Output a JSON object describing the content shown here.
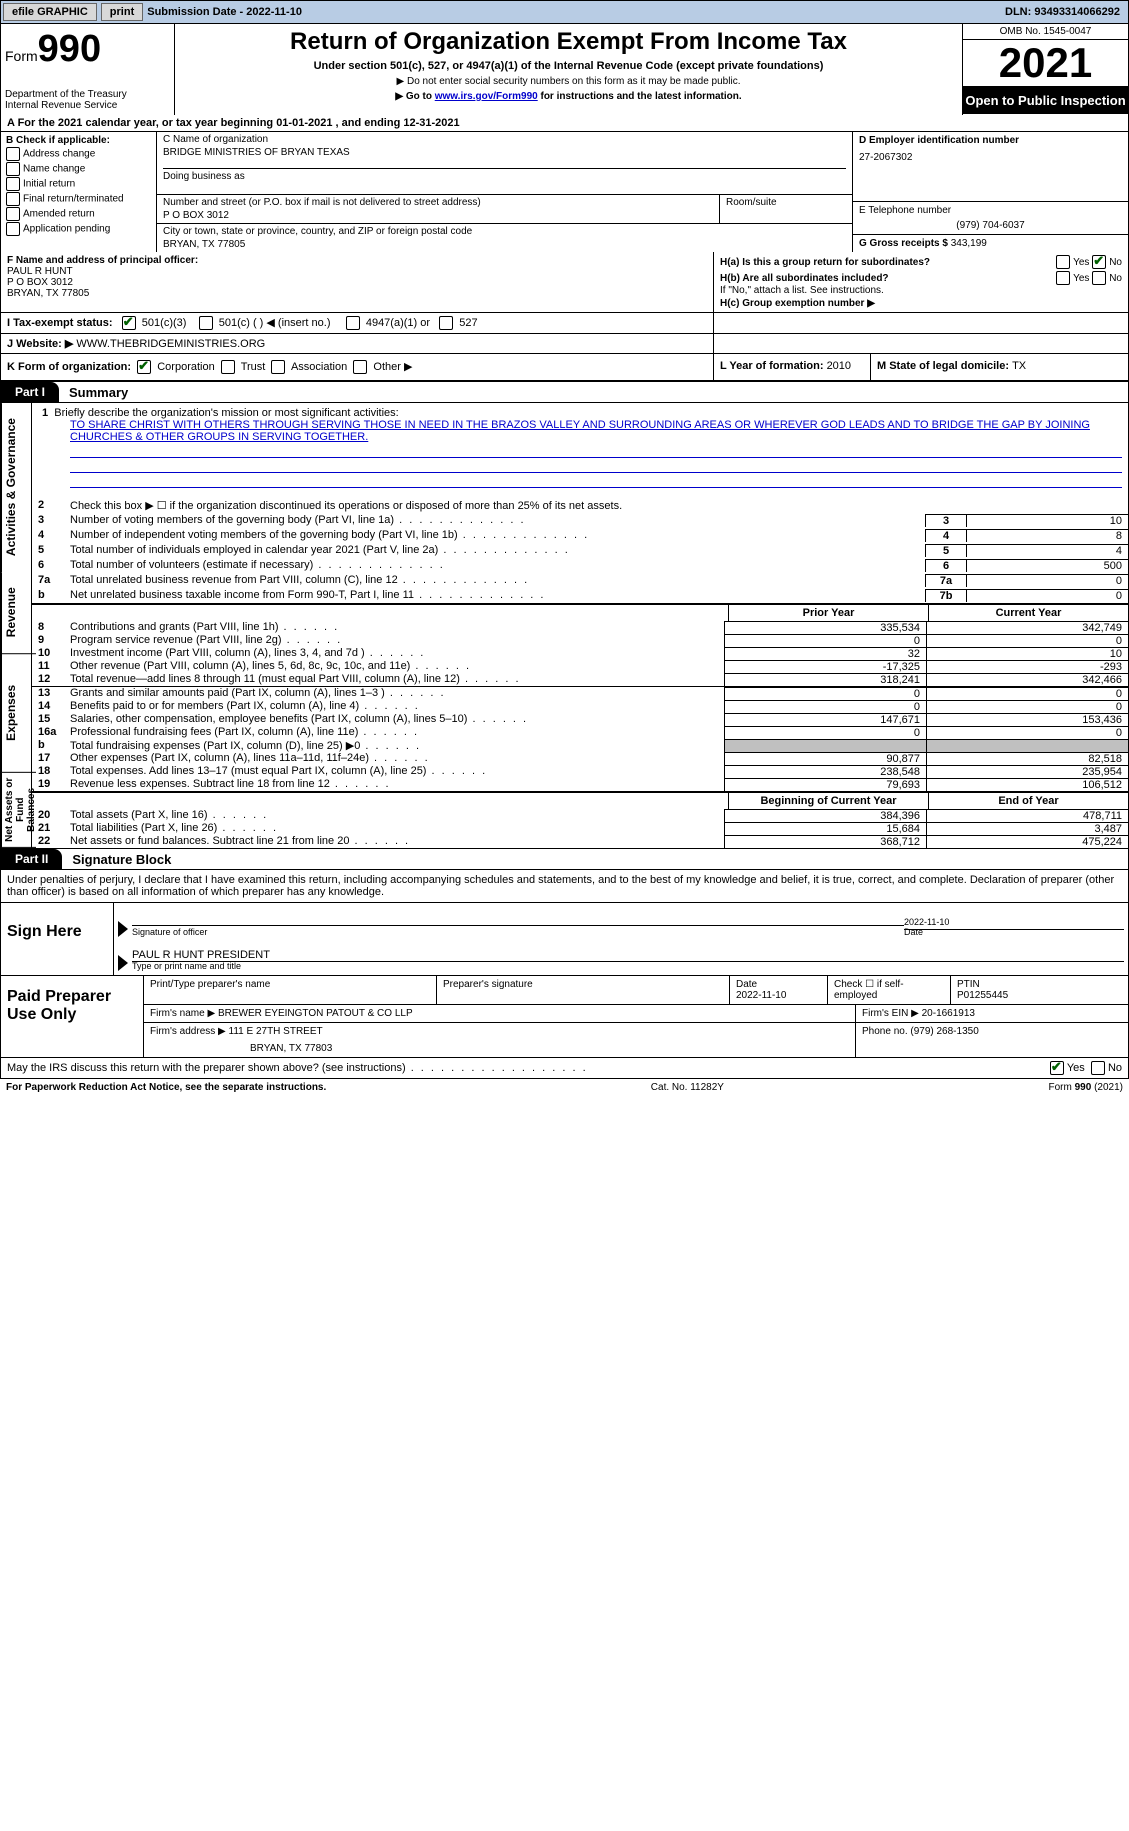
{
  "topbar": {
    "efile": "efile GRAPHIC",
    "print": "print",
    "sub_label": "Submission Date - ",
    "sub_date": "2022-11-10",
    "dln_label": "DLN: ",
    "dln": "93493314066292"
  },
  "header": {
    "form_word": "Form",
    "form_num": "990",
    "dept1": "Department of the Treasury",
    "dept2": "Internal Revenue Service",
    "title": "Return of Organization Exempt From Income Tax",
    "sub": "Under section 501(c), 527, or 4947(a)(1) of the Internal Revenue Code (except private foundations)",
    "note1": "▶ Do not enter social security numbers on this form as it may be made public.",
    "note2_a": "▶ Go to ",
    "note2_link": "www.irs.gov/Form990",
    "note2_b": " for instructions and the latest information.",
    "omb": "OMB No. 1545-0047",
    "year": "2021",
    "open": "Open to Public Inspection"
  },
  "lineA": "A For the 2021 calendar year, or tax year beginning 01-01-2021   , and ending 12-31-2021",
  "blockB": {
    "label": "B Check if applicable:",
    "items": [
      "Address change",
      "Name change",
      "Initial return",
      "Final return/terminated",
      "Amended return",
      "Application pending"
    ]
  },
  "blockC": {
    "name_label": "C Name of organization",
    "name": "BRIDGE MINISTRIES OF BRYAN TEXAS",
    "dba_label": "Doing business as",
    "addr_label": "Number and street (or P.O. box if mail is not delivered to street address)",
    "addr": "P O BOX 3012",
    "room_label": "Room/suite",
    "city_label": "City or town, state or province, country, and ZIP or foreign postal code",
    "city": "BRYAN, TX  77805"
  },
  "blockD": {
    "ein_label": "D Employer identification number",
    "ein": "27-2067302",
    "phone_label": "E Telephone number",
    "phone": "(979) 704-6037",
    "gross_label": "G Gross receipts $ ",
    "gross": "343,199"
  },
  "blockF": {
    "label": "F  Name and address of principal officer:",
    "line1": "PAUL R HUNT",
    "line2": "P O BOX 3012",
    "line3": "BRYAN, TX  77805"
  },
  "blockH": {
    "ha": "H(a)  Is this a group return for subordinates?",
    "hb": "H(b)  Are all subordinates included?",
    "hb_note": "If \"No,\" attach a list. See instructions.",
    "hc": "H(c)  Group exemption number ▶",
    "yes": "Yes",
    "no": "No"
  },
  "lineI": {
    "label": "I     Tax-exempt status:",
    "o1": "501(c)(3)",
    "o2": "501(c) (  ) ◀ (insert no.)",
    "o3": "4947(a)(1) or",
    "o4": "527"
  },
  "lineJ": {
    "label": "J   Website: ▶ ",
    "value": " WWW.THEBRIDGEMINISTRIES.ORG"
  },
  "lineK": {
    "label": "K Form of organization:",
    "o1": "Corporation",
    "o2": "Trust",
    "o3": "Association",
    "o4": "Other ▶",
    "L": "L Year of formation: ",
    "Lval": "2010",
    "M": "M State of legal domicile: ",
    "Mval": "TX"
  },
  "parts": {
    "p1": "Part I",
    "p1_title": "Summary",
    "p2": "Part II",
    "p2_title": "Signature Block"
  },
  "side": {
    "s1": "Activities & Governance",
    "s2": "Revenue",
    "s3": "Expenses",
    "s4": "Net Assets or Fund Balances"
  },
  "summary": {
    "l1": "Briefly describe the organization's mission or most significant activities:",
    "mission": "TO SHARE CHRIST WITH OTHERS THROUGH SERVING THOSE IN NEED IN THE BRAZOS VALLEY AND SURROUNDING AREAS OR WHEREVER GOD LEADS AND TO BRIDGE THE GAP BY JOINING CHURCHES & OTHER GROUPS IN SERVING TOGETHER.",
    "l2": "Check this box ▶ ☐  if the organization discontinued its operations or disposed of more than 25% of its net assets.",
    "rows_ag": [
      {
        "n": "3",
        "d": "Number of voting members of the governing body (Part VI, line 1a)",
        "box": "3",
        "v": "10"
      },
      {
        "n": "4",
        "d": "Number of independent voting members of the governing body (Part VI, line 1b)",
        "box": "4",
        "v": "8"
      },
      {
        "n": "5",
        "d": "Total number of individuals employed in calendar year 2021 (Part V, line 2a)",
        "box": "5",
        "v": "4"
      },
      {
        "n": "6",
        "d": "Total number of volunteers (estimate if necessary)",
        "box": "6",
        "v": "500"
      },
      {
        "n": "7a",
        "d": "Total unrelated business revenue from Part VIII, column (C), line 12",
        "box": "7a",
        "v": "0"
      },
      {
        "n": " b",
        "d": "Net unrelated business taxable income from Form 990-T, Part I, line 11",
        "box": "7b",
        "v": "0"
      }
    ],
    "col_prior": "Prior Year",
    "col_current": "Current Year",
    "col_begin": "Beginning of Current Year",
    "col_end": "End of Year",
    "rev": [
      {
        "n": "8",
        "d": "Contributions and grants (Part VIII, line 1h)",
        "p": "335,534",
        "c": "342,749"
      },
      {
        "n": "9",
        "d": "Program service revenue (Part VIII, line 2g)",
        "p": "0",
        "c": "0"
      },
      {
        "n": "10",
        "d": "Investment income (Part VIII, column (A), lines 3, 4, and 7d )",
        "p": "32",
        "c": "10"
      },
      {
        "n": "11",
        "d": "Other revenue (Part VIII, column (A), lines 5, 6d, 8c, 9c, 10c, and 11e)",
        "p": "-17,325",
        "c": "-293"
      },
      {
        "n": "12",
        "d": "Total revenue—add lines 8 through 11 (must equal Part VIII, column (A), line 12)",
        "p": "318,241",
        "c": "342,466"
      }
    ],
    "exp": [
      {
        "n": "13",
        "d": "Grants and similar amounts paid (Part IX, column (A), lines 1–3 )",
        "p": "0",
        "c": "0"
      },
      {
        "n": "14",
        "d": "Benefits paid to or for members (Part IX, column (A), line 4)",
        "p": "0",
        "c": "0"
      },
      {
        "n": "15",
        "d": "Salaries, other compensation, employee benefits (Part IX, column (A), lines 5–10)",
        "p": "147,671",
        "c": "153,436"
      },
      {
        "n": "16a",
        "d": "Professional fundraising fees (Part IX, column (A), line 11e)",
        "p": "0",
        "c": "0"
      },
      {
        "n": "  b",
        "d": "Total fundraising expenses (Part IX, column (D), line 25) ▶0",
        "p": "",
        "c": "",
        "shaded": true
      },
      {
        "n": "17",
        "d": "Other expenses (Part IX, column (A), lines 11a–11d, 11f–24e)",
        "p": "90,877",
        "c": "82,518"
      },
      {
        "n": "18",
        "d": "Total expenses. Add lines 13–17 (must equal Part IX, column (A), line 25)",
        "p": "238,548",
        "c": "235,954"
      },
      {
        "n": "19",
        "d": "Revenue less expenses. Subtract line 18 from line 12",
        "p": "79,693",
        "c": "106,512"
      }
    ],
    "net": [
      {
        "n": "20",
        "d": "Total assets (Part X, line 16)",
        "p": "384,396",
        "c": "478,711"
      },
      {
        "n": "21",
        "d": "Total liabilities (Part X, line 26)",
        "p": "15,684",
        "c": "3,487"
      },
      {
        "n": "22",
        "d": "Net assets or fund balances. Subtract line 21 from line 20",
        "p": "368,712",
        "c": "475,224"
      }
    ]
  },
  "sig": {
    "decl": "Under penalties of perjury, I declare that I have examined this return, including accompanying schedules and statements, and to the best of my knowledge and belief, it is true, correct, and complete. Declaration of preparer (other than officer) is based on all information of which preparer has any knowledge.",
    "sign_here": "Sign Here",
    "sig_officer": "Signature of officer",
    "date_label": "Date",
    "date": "2022-11-10",
    "name": "PAUL R HUNT  PRESIDENT",
    "name_label": "Type or print name and title"
  },
  "prep": {
    "title": "Paid Preparer Use Only",
    "h1": "Print/Type preparer's name",
    "h2": "Preparer's signature",
    "h3_label": "Date",
    "h3": "2022-11-10",
    "h4": "Check ☐ if self-employed",
    "h5_label": "PTIN",
    "h5": "P01255445",
    "firm_name_label": "Firm's name      ▶ ",
    "firm_name": "BREWER EYEINGTON PATOUT & CO LLP",
    "firm_ein_label": "Firm's EIN ▶ ",
    "firm_ein": "20-1661913",
    "firm_addr_label": "Firm's address ▶ ",
    "firm_addr1": "111 E 27TH STREET",
    "firm_addr2": "BRYAN, TX  77803",
    "phone_label": "Phone no. ",
    "phone": "(979) 268-1350"
  },
  "discuss": {
    "text": "May the IRS discuss this return with the preparer shown above? (see instructions)",
    "yes": "Yes",
    "no": "No"
  },
  "footer": {
    "left": "For Paperwork Reduction Act Notice, see the separate instructions.",
    "mid": "Cat. No. 11282Y",
    "right_a": "Form ",
    "right_b": "990",
    "right_c": " (2021)"
  }
}
